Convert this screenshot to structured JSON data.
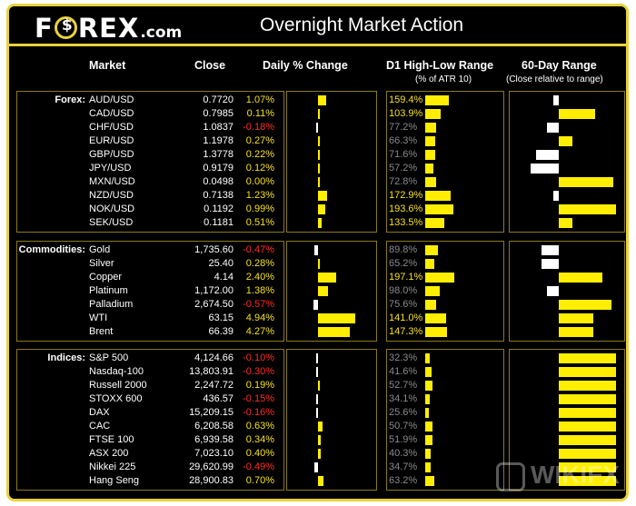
{
  "header": {
    "logo_part1": "F",
    "logo_part2": "REX",
    "logo_suffix": ".com",
    "title": "Overnight Market Action"
  },
  "columns": {
    "market": "Market",
    "close": "Close",
    "daily_change": "Daily % Change",
    "d1_range": "D1 High-Low Range",
    "d1_range_sub": "(% of ATR 10)",
    "sixty_day": "60-Day Range",
    "sixty_day_sub": "(Close relative to range)"
  },
  "colors": {
    "frame": "#e8d23a",
    "positive": "#f5e11a",
    "negative": "#ff2a2a",
    "bar": "#ffee00"
  },
  "sections": [
    {
      "label": "Forex:",
      "rows": [
        {
          "market": "AUD/USD",
          "close": "0.7720",
          "change": "1.07%",
          "change_value": 1.07,
          "range": "159.4%",
          "range_value": 159.4,
          "sixty": 0.45
        },
        {
          "market": "CAD/USD",
          "close": "0.7985",
          "change": "0.11%",
          "change_value": 0.11,
          "range": "103.9%",
          "range_value": 103.9,
          "sixty": 0.82
        },
        {
          "market": "CHF/USD",
          "close": "1.0837",
          "change": "-0.18%",
          "change_value": -0.18,
          "range": "77.2%",
          "range_value": 77.2,
          "sixty": 0.4
        },
        {
          "market": "EUR/USD",
          "close": "1.1978",
          "change": "0.27%",
          "change_value": 0.27,
          "range": "66.3%",
          "range_value": 66.3,
          "sixty": 0.62
        },
        {
          "market": "GBP/USD",
          "close": "1.3778",
          "change": "0.22%",
          "change_value": 0.22,
          "range": "71.6%",
          "range_value": 71.6,
          "sixty": 0.3
        },
        {
          "market": "JPY/USD",
          "close": "0.9179",
          "change": "0.12%",
          "change_value": 0.12,
          "range": "57.2%",
          "range_value": 57.2,
          "sixty": 0.25
        },
        {
          "market": "MXN/USD",
          "close": "0.0498",
          "change": "0.00%",
          "change_value": 0.0,
          "range": "72.8%",
          "range_value": 72.8,
          "sixty": 0.98
        },
        {
          "market": "NZD/USD",
          "close": "0.7138",
          "change": "1.23%",
          "change_value": 1.23,
          "range": "172.9%",
          "range_value": 172.9,
          "sixty": 0.45
        },
        {
          "market": "NOK/USD",
          "close": "0.1192",
          "change": "0.99%",
          "change_value": 0.99,
          "range": "193.6%",
          "range_value": 193.6,
          "sixty": 1.0
        },
        {
          "market": "SEK/USD",
          "close": "0.1181",
          "change": "0.51%",
          "change_value": 0.51,
          "range": "133.5%",
          "range_value": 133.5,
          "sixty": 0.62
        }
      ]
    },
    {
      "label": "Commodities:",
      "rows": [
        {
          "market": "Gold",
          "close": "1,735.60",
          "change": "-0.47%",
          "change_value": -0.47,
          "range": "89.8%",
          "range_value": 89.8,
          "sixty": 0.35
        },
        {
          "market": "Silver",
          "close": "25.40",
          "change": "0.28%",
          "change_value": 0.28,
          "range": "65.2%",
          "range_value": 65.2,
          "sixty": 0.35
        },
        {
          "market": "Copper",
          "close": "4.14",
          "change": "2.40%",
          "change_value": 2.4,
          "range": "197.1%",
          "range_value": 197.1,
          "sixty": 0.88
        },
        {
          "market": "Platinum",
          "close": "1,172.00",
          "change": "1.38%",
          "change_value": 1.38,
          "range": "98.0%",
          "range_value": 98.0,
          "sixty": 0.4
        },
        {
          "market": "Palladium",
          "close": "2,674.50",
          "change": "-0.57%",
          "change_value": -0.57,
          "range": "75.6%",
          "range_value": 75.6,
          "sixty": 0.96
        },
        {
          "market": "WTI",
          "close": "63.15",
          "change": "4.94%",
          "change_value": 4.94,
          "range": "141.0%",
          "range_value": 141.0,
          "sixty": 0.8
        },
        {
          "market": "Brent",
          "close": "66.39",
          "change": "4.27%",
          "change_value": 4.27,
          "range": "147.3%",
          "range_value": 147.3,
          "sixty": 0.8
        }
      ]
    },
    {
      "label": "Indices:",
      "rows": [
        {
          "market": "S&P 500",
          "close": "4,124.66",
          "change": "-0.10%",
          "change_value": -0.1,
          "range": "32.3%",
          "range_value": 32.3,
          "sixty": 1.0
        },
        {
          "market": "Nasdaq-100",
          "close": "13,803.91",
          "change": "-0.30%",
          "change_value": -0.3,
          "range": "41.6%",
          "range_value": 41.6,
          "sixty": 1.0
        },
        {
          "market": "Russell 2000",
          "close": "2,247.72",
          "change": "0.19%",
          "change_value": 0.19,
          "range": "52.7%",
          "range_value": 52.7,
          "sixty": 1.0
        },
        {
          "market": "STOXX 600",
          "close": "436.57",
          "change": "-0.15%",
          "change_value": -0.15,
          "range": "34.1%",
          "range_value": 34.1,
          "sixty": 1.0
        },
        {
          "market": "DAX",
          "close": "15,209.15",
          "change": "-0.16%",
          "change_value": -0.16,
          "range": "25.6%",
          "range_value": 25.6,
          "sixty": 1.0
        },
        {
          "market": "CAC",
          "close": "6,208.58",
          "change": "0.63%",
          "change_value": 0.63,
          "range": "50.7%",
          "range_value": 50.7,
          "sixty": 1.0
        },
        {
          "market": "FTSE 100",
          "close": "6,939.58",
          "change": "0.34%",
          "change_value": 0.34,
          "range": "51.9%",
          "range_value": 51.9,
          "sixty": 1.0
        },
        {
          "market": "ASX 200",
          "close": "7,023.10",
          "change": "0.40%",
          "change_value": 0.4,
          "range": "40.3%",
          "range_value": 40.3,
          "sixty": 1.0
        },
        {
          "market": "Nikkei 225",
          "close": "29,620.99",
          "change": "-0.49%",
          "change_value": -0.49,
          "range": "34.7%",
          "range_value": 34.7,
          "sixty": 1.0
        },
        {
          "market": "Hang Seng",
          "close": "28,900.83",
          "change": "0.70%",
          "change_value": 0.7,
          "range": "63.2%",
          "range_value": 63.2,
          "sixty": 1.0
        }
      ]
    }
  ],
  "watermark": "WIKIFX"
}
